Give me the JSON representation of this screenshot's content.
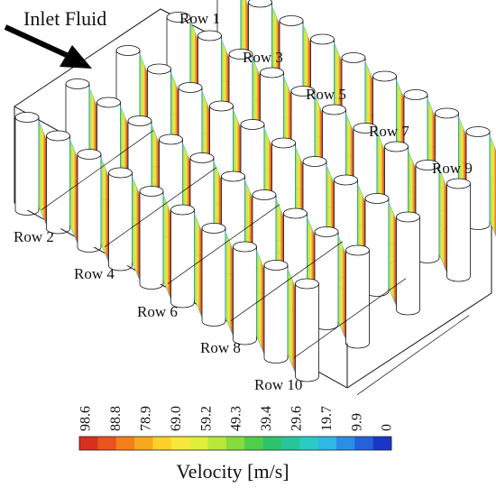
{
  "annotation": {
    "inlet_label": "Inlet Fluid"
  },
  "rows": {
    "back": [
      "Row 1",
      "Row 3",
      "Row 5",
      "Row 7",
      "Row 9"
    ],
    "front": [
      "Row 2",
      "Row 4",
      "Row 6",
      "Row 8",
      "Row 10"
    ]
  },
  "legend": {
    "title": "Velocity [m/s]",
    "tick_labels": [
      "98.6",
      "88.8",
      "78.9",
      "69.0",
      "59.2",
      "49.3",
      "39.4",
      "29.6",
      "19.7",
      "9.9",
      "0"
    ],
    "colors": [
      "#d7301f",
      "#e8541c",
      "#f47f1b",
      "#f8a81f",
      "#fbd02b",
      "#f5e83a",
      "#e2ef3a",
      "#b8e83a",
      "#86dc3c",
      "#4fcf4a",
      "#2ec46b",
      "#28c59b",
      "#29cbc6",
      "#2eb8e3",
      "#2a8fe4",
      "#2462d9",
      "#1a36c8"
    ]
  }
}
